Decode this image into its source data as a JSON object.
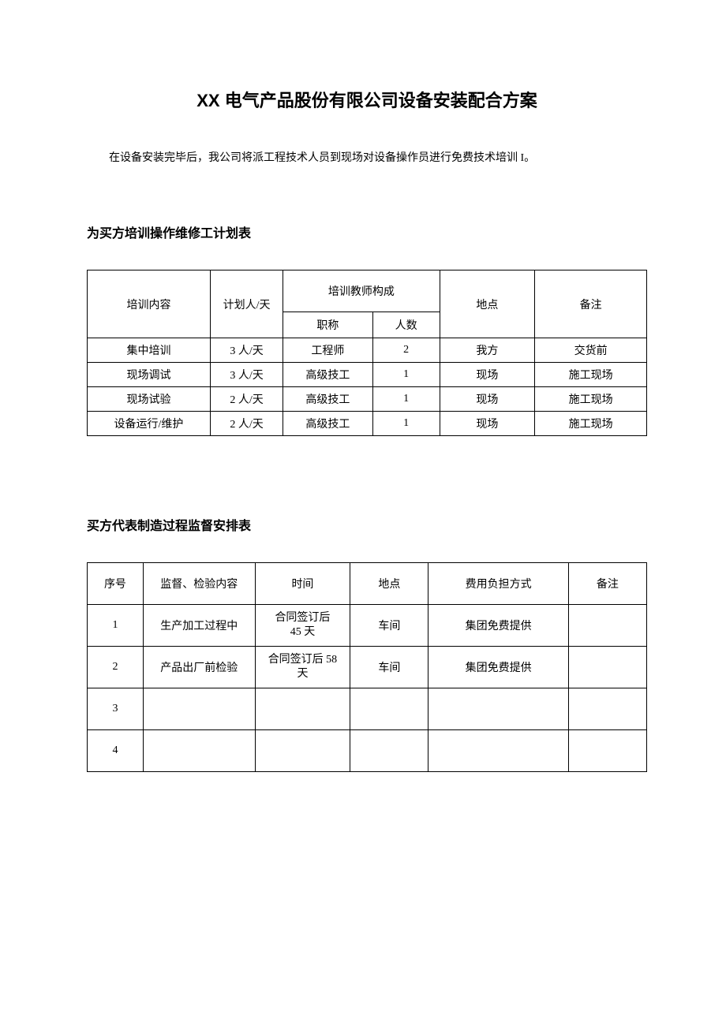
{
  "title_prefix": "XX",
  "title_rest": " 电气产品股份有限公司设备安装配合方案",
  "intro_text": "在设备安装完毕后，我公司将派工程技术人员到现场对设备操作员进行免费技术培训 I。",
  "section1_title": "为买方培训操作维修工计划表",
  "table1": {
    "col_widths": [
      "22%",
      "13%",
      "16%",
      "12%",
      "17%",
      "20%"
    ],
    "headers": {
      "content": "培训内容",
      "plan": "计划人/天",
      "teacher_group": "培训教师构成",
      "title_col": "职称",
      "count_col": "人数",
      "location": "地点",
      "remark": "备注"
    },
    "rows": [
      {
        "content": "集中培训",
        "plan": "3 人/天",
        "title": "工程师",
        "count": "2",
        "location": "我方",
        "remark": "交货前"
      },
      {
        "content": "现场调试",
        "plan": "3 人/天",
        "title": "高级技工",
        "count": "1",
        "location": "现场",
        "remark": "施工现场"
      },
      {
        "content": "现场试验",
        "plan": "2 人/天",
        "title": "高级技工",
        "count": "1",
        "location": "现场",
        "remark": "施工现场"
      },
      {
        "content": "设备运行/维护",
        "plan": "2 人/天",
        "title": "高级技工",
        "count": "1",
        "location": "现场",
        "remark": "施工现场"
      }
    ]
  },
  "section2_title": "买方代表制造过程监督安排表",
  "table2": {
    "col_widths": [
      "10%",
      "20%",
      "17%",
      "14%",
      "25%",
      "14%"
    ],
    "headers": {
      "no": "序号",
      "content": "监督、检验内容",
      "time": "时间",
      "location": "地点",
      "cost": "费用负担方式",
      "remark": "备注"
    },
    "rows": [
      {
        "no": "1",
        "content": "生产加工过程中",
        "time_l1": "合同签订后",
        "time_l2": "45 天",
        "location": "车间",
        "cost": "集团免费提供",
        "remark": ""
      },
      {
        "no": "2",
        "content": "产品出厂前检验",
        "time_l1": "合同签订后 58",
        "time_l2": "天",
        "location": "车间",
        "cost": "集团免费提供",
        "remark": ""
      },
      {
        "no": "3",
        "content": "",
        "time_l1": "",
        "time_l2": "",
        "location": "",
        "cost": "",
        "remark": ""
      },
      {
        "no": "4",
        "content": "",
        "time_l1": "",
        "time_l2": "",
        "location": "",
        "cost": "",
        "remark": ""
      }
    ]
  },
  "colors": {
    "text": "#000000",
    "background": "#ffffff",
    "border": "#000000"
  }
}
